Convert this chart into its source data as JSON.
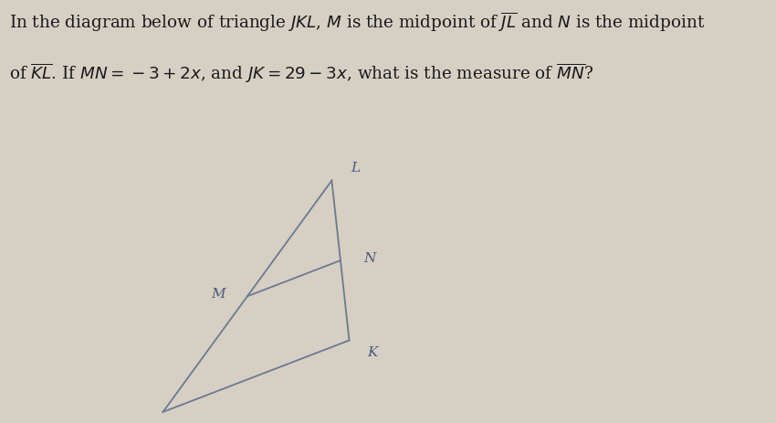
{
  "background_color": "#d6cfc4",
  "line_color": "#6b7a8d",
  "text_color": "#1a1a1a",
  "label_color": "#4a5a7a",
  "title_line1": "In the diagram below of triangle $JKL$, $M$ is the midpoint of $\\overline{JL}$ and $N$ is the midpoint",
  "title_line2": "of $\\overline{KL}$. If $MN = -3 + 2x$, and $JK = 29 - 3x$, what is the measure of $\\overline{MN}$?",
  "J": [
    0.28,
    0.04
  ],
  "K": [
    0.6,
    0.3
  ],
  "L": [
    0.57,
    0.88
  ],
  "label_fontsize": 11,
  "title_fontsize": 13.2,
  "line_width": 1.3
}
